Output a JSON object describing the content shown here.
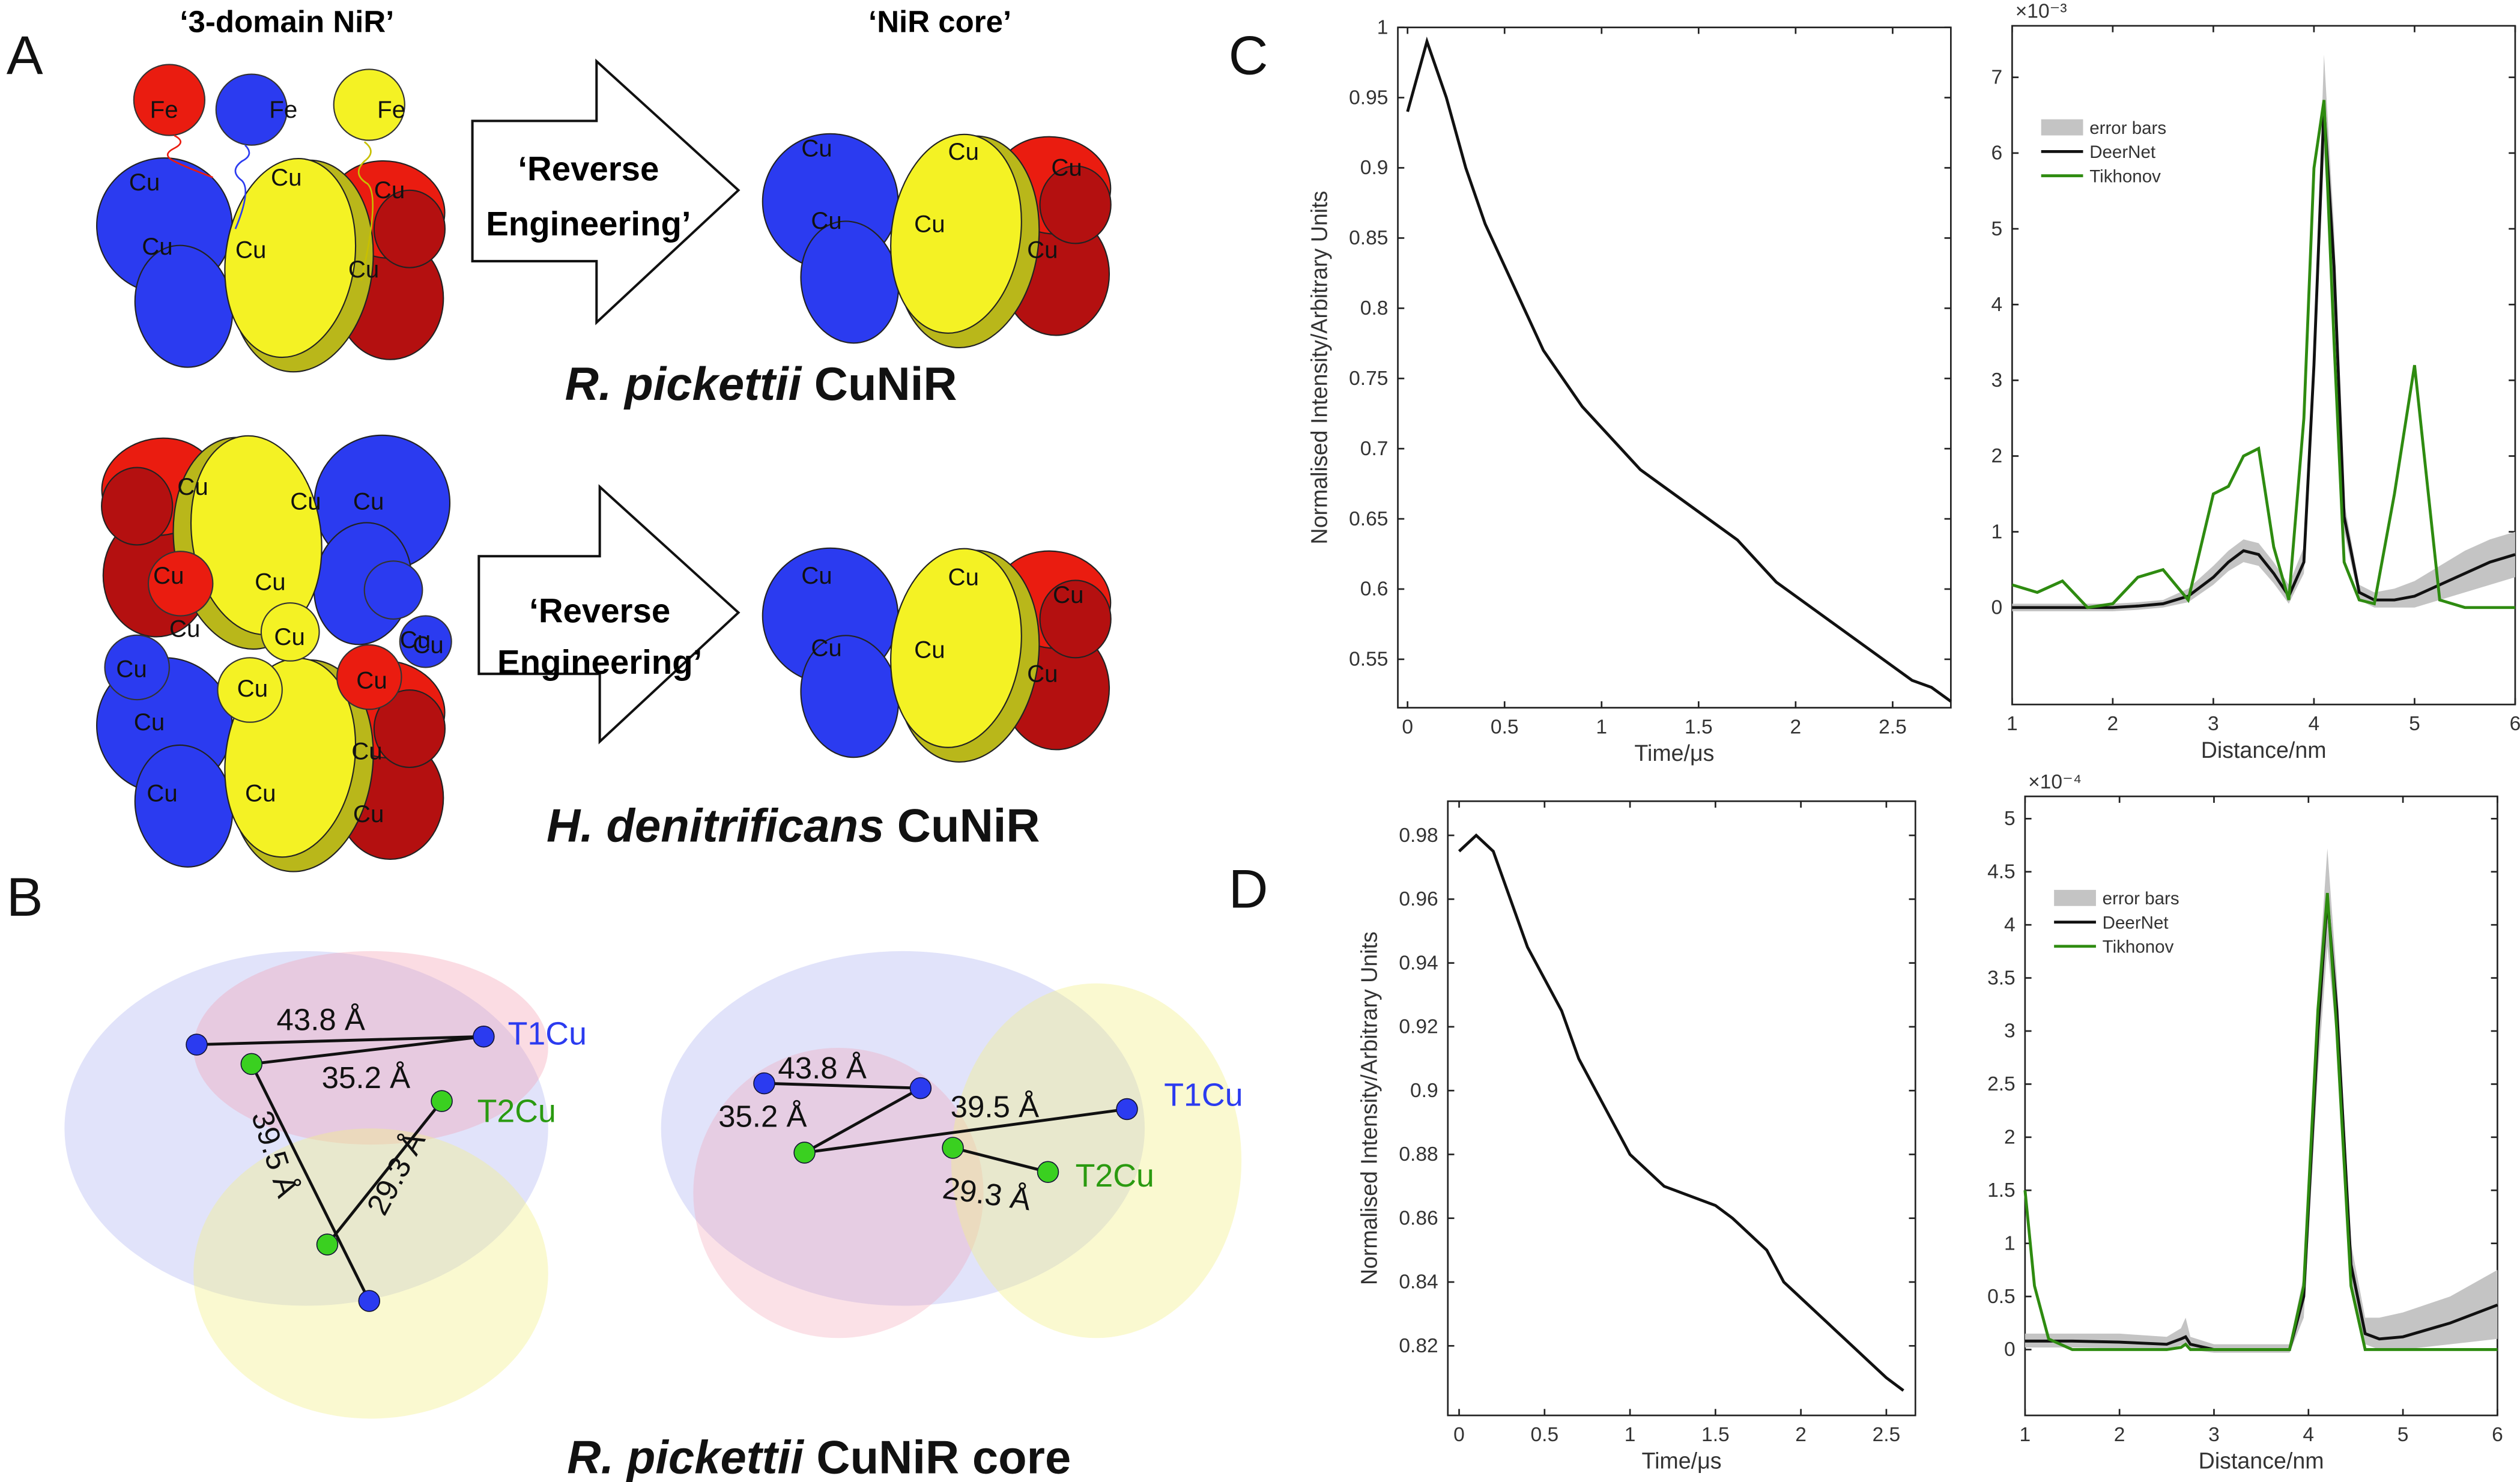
{
  "panel_labels": [
    "A",
    "B",
    "C",
    "D"
  ],
  "panel_a": {
    "title_left": "‘3-domain NiR’",
    "title_right": "‘NiR core’",
    "arrow_1": [
      "‘Reverse",
      "Engineering’"
    ],
    "arrow_2": [
      "‘Reverse",
      "Engineering’"
    ],
    "species_1": {
      "italic": "R. pickettii",
      "plain": "CuNiR"
    },
    "species_2": {
      "italic": "H. denitrificans",
      "plain": "CuNiR"
    },
    "iron_label": "Fe",
    "copper_label": "Cu"
  },
  "panel_b": {
    "distances_left": [
      "43.8 Å",
      "35.2 Å",
      "39.5 Å",
      "29.3 Å"
    ],
    "distances_right": [
      "43.8 Å",
      "35.2 Å",
      "39.5 Å",
      "29.3 Å"
    ],
    "site_1": "T1Cu",
    "site_2": "T2Cu",
    "caption": {
      "italic": "R. pickettii",
      "plain": "CuNiR core"
    }
  },
  "chart_data": [
    {
      "type": "line",
      "xlabel": "Time/μs",
      "ylabel": "Normalised Intensity/Arbitrary Units",
      "xlim": [
        -0.05,
        2.8
      ],
      "ylim": [
        0.5155,
        1
      ],
      "xticks": [
        0,
        0.5,
        1,
        1.5,
        2,
        2.5
      ],
      "yticks": [
        0.55,
        0.6,
        0.65,
        0.7,
        0.75,
        0.8,
        0.85,
        0.9,
        0.95,
        1
      ],
      "x": [
        0,
        0.1,
        0.2,
        0.3,
        0.4,
        0.5,
        0.6,
        0.7,
        0.8,
        0.9,
        1,
        1.1,
        1.2,
        1.3,
        1.4,
        1.5,
        1.6,
        1.7,
        1.8,
        1.9,
        2,
        2.1,
        2.2,
        2.3,
        2.4,
        2.5,
        2.6,
        2.7,
        2.8
      ],
      "series": [
        {
          "color": "#111111",
          "values": [
            0.94,
            0.99,
            0.95,
            0.9,
            0.86,
            0.83,
            0.8,
            0.77,
            0.75,
            0.73,
            0.715,
            0.7,
            0.685,
            0.675,
            0.665,
            0.655,
            0.645,
            0.635,
            0.62,
            0.605,
            0.595,
            0.585,
            0.575,
            0.565,
            0.555,
            0.545,
            0.535,
            0.53,
            0.52
          ]
        }
      ]
    },
    {
      "type": "line",
      "xlabel": "Distance/nm",
      "y_exponent_label": "×10⁻³",
      "xlim": [
        1,
        6
      ],
      "ylim": [
        -1.28,
        7.68
      ],
      "xticks": [
        1,
        2,
        3,
        4,
        5,
        6
      ],
      "yticks": [
        0,
        1,
        2,
        3,
        4,
        5,
        6,
        7
      ],
      "legend": "upper left",
      "x": [
        1,
        1.25,
        1.5,
        1.75,
        2,
        2.25,
        2.5,
        2.75,
        3,
        3.15,
        3.3,
        3.45,
        3.6,
        3.75,
        3.9,
        4,
        4.1,
        4.2,
        4.3,
        4.45,
        4.6,
        4.8,
        5,
        5.25,
        5.5,
        5.75,
        6
      ],
      "series": [
        {
          "name": "error bars",
          "color": "#c4c4c4",
          "kind": "band",
          "lower": [
            -0.05,
            -0.05,
            -0.05,
            -0.05,
            -0.05,
            -0.03,
            0,
            0.07,
            0.3,
            0.48,
            0.6,
            0.55,
            0.32,
            0.05,
            0.45,
            2.9,
            6,
            4,
            1,
            0.1,
            0,
            0,
            0,
            0.1,
            0.2,
            0.3,
            0.4
          ],
          "upper": [
            0.05,
            0.05,
            0.05,
            0.05,
            0.05,
            0.07,
            0.1,
            0.25,
            0.55,
            0.75,
            0.9,
            0.85,
            0.6,
            0.3,
            0.8,
            3.5,
            7.3,
            5,
            1.4,
            0.3,
            0.2,
            0.25,
            0.35,
            0.55,
            0.75,
            0.9,
            1
          ]
        },
        {
          "name": "DeerNet",
          "color": "#111111",
          "values": [
            0,
            0,
            0,
            0,
            0,
            0.02,
            0.05,
            0.15,
            0.4,
            0.6,
            0.75,
            0.7,
            0.45,
            0.15,
            0.6,
            3.2,
            6.6,
            4.5,
            1.2,
            0.2,
            0.1,
            0.1,
            0.15,
            0.3,
            0.45,
            0.6,
            0.7
          ]
        },
        {
          "name": "Tikhonov",
          "color": "#2e8b10",
          "values": [
            0.3,
            0.2,
            0.35,
            0,
            0.05,
            0.4,
            0.5,
            0.1,
            1.5,
            1.6,
            2,
            2.1,
            0.8,
            0.1,
            2.5,
            5.8,
            6.7,
            3.5,
            0.6,
            0.1,
            0.05,
            1.5,
            3.2,
            0.1,
            0,
            0,
            0
          ]
        }
      ]
    },
    {
      "type": "line",
      "xlabel": "Time/μs",
      "ylabel": "Normalised Intensity/Arbitrary Units",
      "xlim": [
        -0.066,
        2.67
      ],
      "ylim": [
        0.7982,
        0.9907
      ],
      "xticks": [
        0,
        0.5,
        1,
        1.5,
        2,
        2.5
      ],
      "yticks": [
        0.82,
        0.84,
        0.86,
        0.88,
        0.9,
        0.92,
        0.94,
        0.96,
        0.98
      ],
      "x": [
        0,
        0.1,
        0.2,
        0.3,
        0.4,
        0.5,
        0.6,
        0.7,
        0.8,
        0.9,
        1,
        1.1,
        1.2,
        1.3,
        1.4,
        1.5,
        1.6,
        1.7,
        1.8,
        1.9,
        2,
        2.1,
        2.2,
        2.3,
        2.4,
        2.5,
        2.6
      ],
      "series": [
        {
          "color": "#111111",
          "values": [
            0.975,
            0.98,
            0.975,
            0.96,
            0.945,
            0.935,
            0.925,
            0.91,
            0.9,
            0.89,
            0.88,
            0.875,
            0.87,
            0.868,
            0.866,
            0.864,
            0.86,
            0.855,
            0.85,
            0.84,
            0.835,
            0.83,
            0.825,
            0.82,
            0.815,
            0.81,
            0.806
          ]
        }
      ]
    },
    {
      "type": "line",
      "xlabel": "Distance/nm",
      "y_exponent_label": "×10⁻⁴",
      "xlim": [
        1,
        6
      ],
      "ylim": [
        -0.62,
        5.21
      ],
      "xticks": [
        1,
        2,
        3,
        4,
        5,
        6
      ],
      "yticks": [
        0,
        0.5,
        1,
        1.5,
        2,
        2.5,
        3,
        3.5,
        4,
        4.5,
        5
      ],
      "legend": "upper left",
      "x": [
        1,
        1.1,
        1.25,
        1.5,
        2,
        2.5,
        2.65,
        2.7,
        2.75,
        3,
        3.5,
        3.8,
        3.95,
        4.1,
        4.2,
        4.3,
        4.45,
        4.6,
        4.75,
        5,
        5.5,
        6
      ],
      "series": [
        {
          "name": "error bars",
          "color": "#c4c4c4",
          "kind": "band",
          "lower": [
            0.02,
            0.02,
            0.02,
            0.02,
            0.01,
            0,
            0.04,
            0.05,
            0,
            -0.03,
            -0.03,
            -0.03,
            0.3,
            2.6,
            3.8,
            2.9,
            0.6,
            0.05,
            0,
            0,
            0.05,
            0.1
          ],
          "upper": [
            0.15,
            0.15,
            0.15,
            0.15,
            0.15,
            0.12,
            0.2,
            0.3,
            0.12,
            0.05,
            0.05,
            0.05,
            0.7,
            3.4,
            4.72,
            3.5,
            1,
            0.3,
            0.3,
            0.35,
            0.5,
            0.75
          ]
        },
        {
          "name": "DeerNet",
          "color": "#111111",
          "values": [
            0.08,
            0.08,
            0.08,
            0.08,
            0.07,
            0.05,
            0.1,
            0.12,
            0.05,
            0,
            0,
            0,
            0.5,
            3,
            4.25,
            3.2,
            0.8,
            0.15,
            0.1,
            0.12,
            0.25,
            0.42
          ]
        },
        {
          "name": "Tikhonov",
          "color": "#2e8b10",
          "values": [
            1.5,
            0.6,
            0.1,
            0,
            0,
            0,
            0.02,
            0.05,
            0,
            0,
            0,
            0,
            0.6,
            3.2,
            4.3,
            3,
            0.6,
            0,
            0,
            0,
            0,
            0
          ]
        }
      ]
    }
  ]
}
